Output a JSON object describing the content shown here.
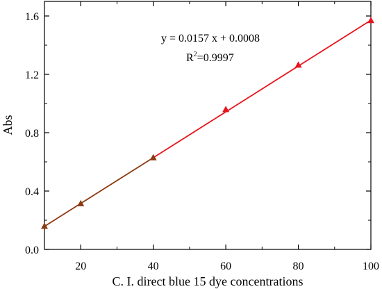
{
  "chart_data": {
    "type": "line",
    "xlabel": "C. I. direct blue 15 dye concentrations",
    "ylabel": "Abs",
    "xlim": [
      10,
      100
    ],
    "ylim": [
      0.0,
      1.7
    ],
    "x_ticks": [
      20,
      40,
      60,
      80,
      100
    ],
    "x_tick_labels": [
      "20",
      "40",
      "60",
      "80",
      "100"
    ],
    "y_ticks": [
      0.0,
      0.4,
      0.8,
      1.2,
      1.6
    ],
    "y_tick_labels": [
      "0.0",
      "0.4",
      "0.8",
      "1.2",
      "1.6"
    ],
    "series": [
      {
        "marker": "triangle",
        "points": [
          {
            "x": 10,
            "y": 0.16,
            "color": "#8b3a0f"
          },
          {
            "x": 20,
            "y": 0.315,
            "color": "#8b3a0f"
          },
          {
            "x": 40,
            "y": 0.63,
            "color": "#8b3a0f"
          },
          {
            "x": 60,
            "y": 0.96,
            "color": "#e8141b"
          },
          {
            "x": 80,
            "y": 1.265,
            "color": "#e8141b"
          },
          {
            "x": 100,
            "y": 1.57,
            "color": "#e8141b"
          }
        ]
      }
    ],
    "fit_line": {
      "slope": 0.0157,
      "intercept": 0.0008,
      "x_range": [
        10,
        100
      ],
      "color_start": "#8b3a0f",
      "color_end": "#e8141b",
      "color_switch_x": 40
    },
    "annotation": {
      "equation": "y = 0.0157 x + 0.0008",
      "r2_prefix": "R",
      "r2_sup": "2",
      "r2_value": "=0.9997"
    },
    "grid": false,
    "legend": "none"
  }
}
